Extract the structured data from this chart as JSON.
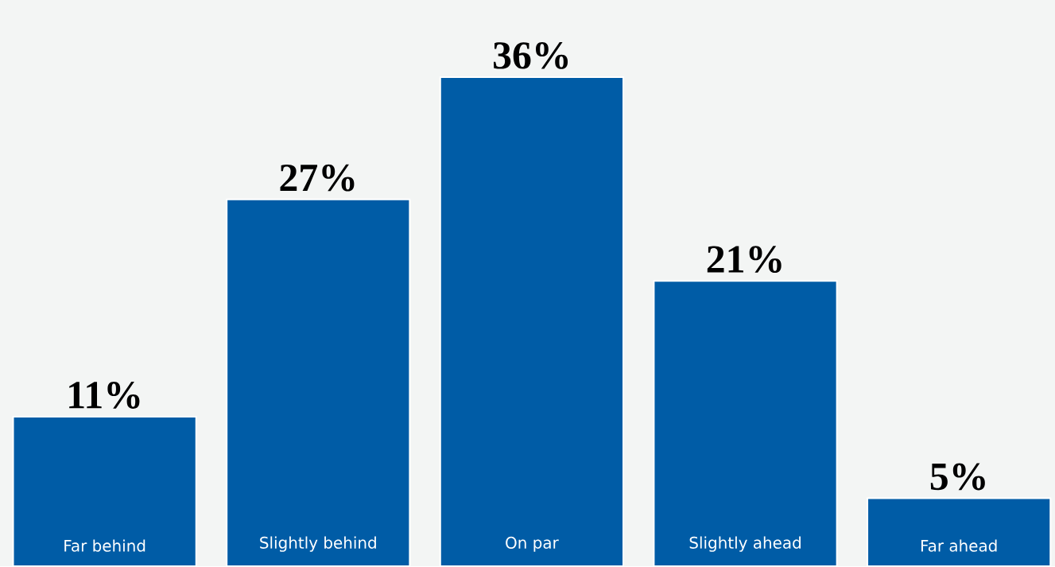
{
  "chart_data": {
    "type": "bar",
    "categories": [
      "Far behind",
      "Slightly behind",
      "On par",
      "Slightly ahead",
      "Far ahead"
    ],
    "values": [
      11,
      27,
      36,
      21,
      5
    ],
    "value_labels": [
      "11%",
      "27%",
      "36%",
      "21%",
      "5%"
    ],
    "color": "#005ca6"
  }
}
